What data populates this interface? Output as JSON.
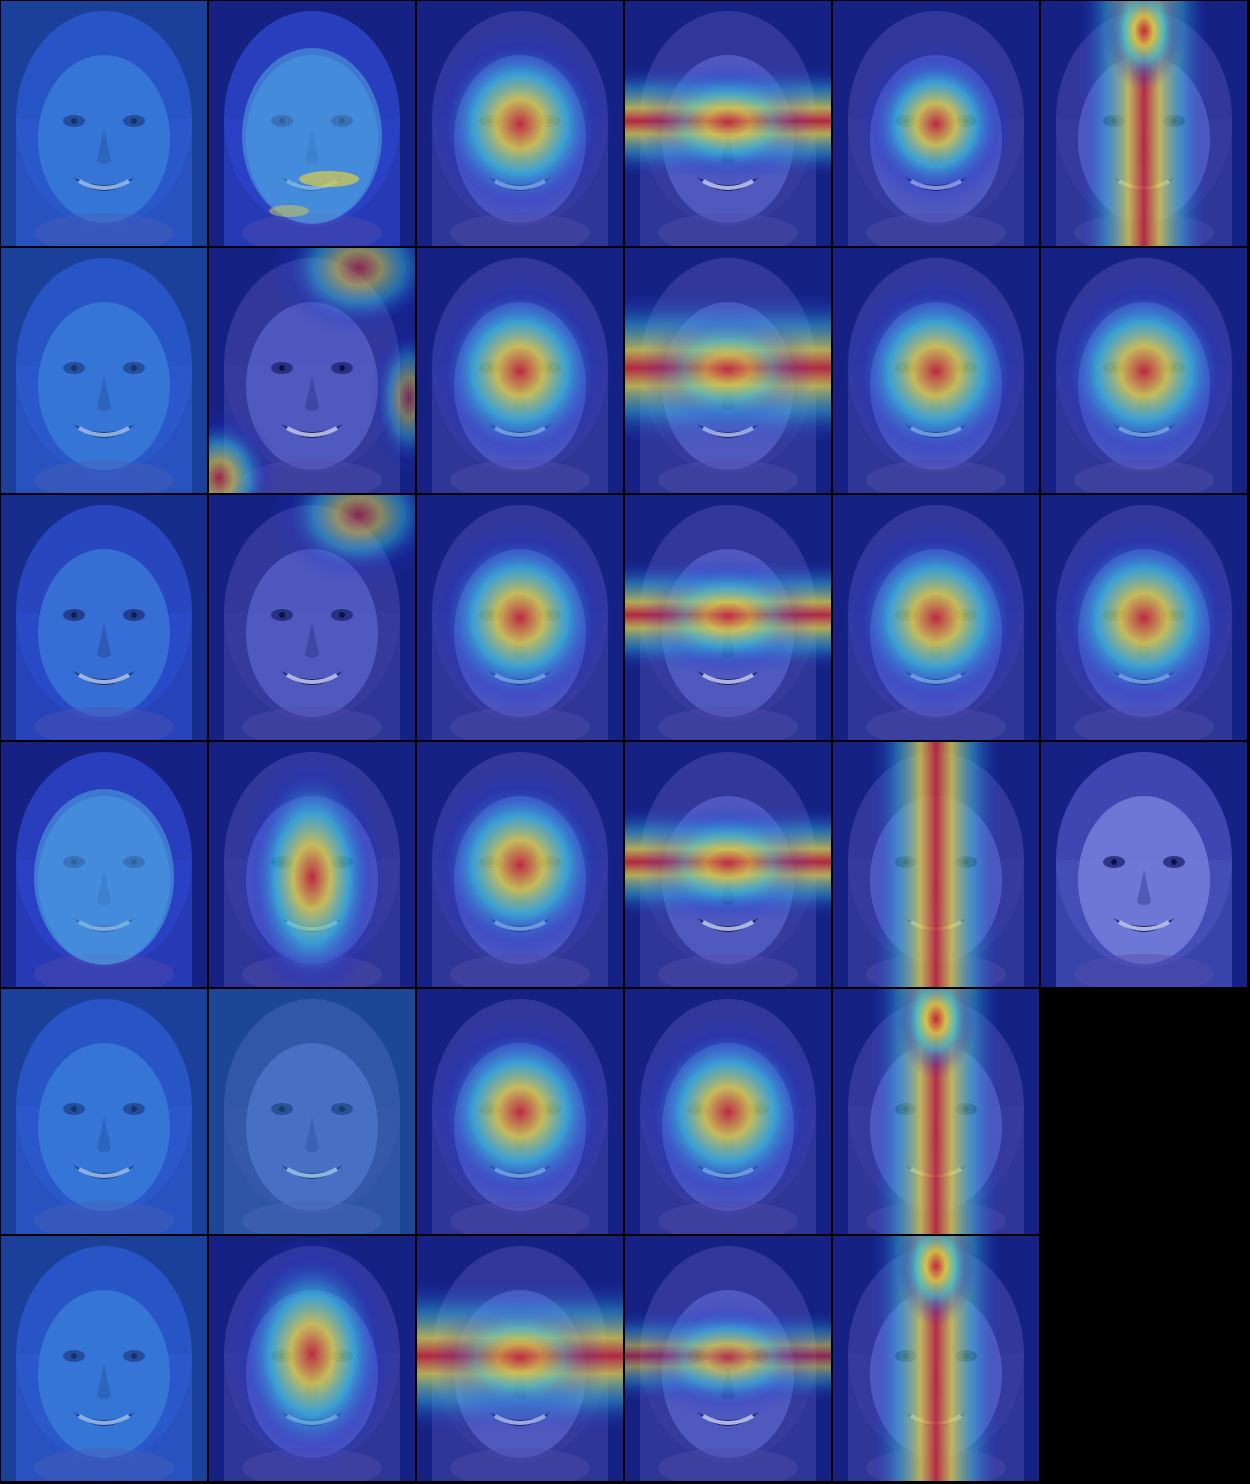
{
  "grid": {
    "rows": 6,
    "cols": 6
  },
  "colors": {
    "background": "#000000",
    "tint": "#2233c8",
    "heat_low": "#1a2fd6",
    "heat_mid": "#35d0e0",
    "heat_warm": "#f3e23a",
    "heat_hot": "#d8262a"
  },
  "tiles": [
    {
      "row": 0,
      "col": 0,
      "style": "gradient-noise"
    },
    {
      "row": 0,
      "col": 1,
      "style": "blotchy-face"
    },
    {
      "row": 0,
      "col": 2,
      "style": "blob-center"
    },
    {
      "row": 0,
      "col": 3,
      "style": "horizontal-band"
    },
    {
      "row": 0,
      "col": 4,
      "style": "blob-center-small"
    },
    {
      "row": 0,
      "col": 5,
      "style": "vertical-band-top"
    },
    {
      "row": 1,
      "col": 0,
      "style": "gradient-soft"
    },
    {
      "row": 1,
      "col": 1,
      "style": "hair-corners"
    },
    {
      "row": 1,
      "col": 2,
      "style": "blob-center"
    },
    {
      "row": 1,
      "col": 3,
      "style": "horizontal-band-wide"
    },
    {
      "row": 1,
      "col": 4,
      "style": "blob-center"
    },
    {
      "row": 1,
      "col": 5,
      "style": "blob-center"
    },
    {
      "row": 2,
      "col": 0,
      "style": "edge-faint"
    },
    {
      "row": 2,
      "col": 1,
      "style": "hair-top"
    },
    {
      "row": 2,
      "col": 2,
      "style": "blob-center"
    },
    {
      "row": 2,
      "col": 3,
      "style": "horizontal-band"
    },
    {
      "row": 2,
      "col": 4,
      "style": "blob-center"
    },
    {
      "row": 2,
      "col": 5,
      "style": "blob-center"
    },
    {
      "row": 3,
      "col": 0,
      "style": "blotchy-light"
    },
    {
      "row": 3,
      "col": 1,
      "style": "vertical-blob"
    },
    {
      "row": 3,
      "col": 2,
      "style": "blob-center"
    },
    {
      "row": 3,
      "col": 3,
      "style": "horizontal-band"
    },
    {
      "row": 3,
      "col": 4,
      "style": "vertical-band"
    },
    {
      "row": 3,
      "col": 5,
      "style": "plain-tint"
    },
    {
      "row": 4,
      "col": 0,
      "style": "edge-hair"
    },
    {
      "row": 4,
      "col": 1,
      "style": "soft-cyan"
    },
    {
      "row": 4,
      "col": 2,
      "style": "blob-center"
    },
    {
      "row": 4,
      "col": 3,
      "style": "blob-center"
    },
    {
      "row": 4,
      "col": 4,
      "style": "vertical-band-top"
    },
    {
      "row": 4,
      "col": 5,
      "style": "empty"
    },
    {
      "row": 5,
      "col": 0,
      "style": "edge-hair"
    },
    {
      "row": 5,
      "col": 1,
      "style": "blob-center-tall"
    },
    {
      "row": 5,
      "col": 2,
      "style": "horizontal-band-wide"
    },
    {
      "row": 5,
      "col": 3,
      "style": "horizontal-band-soft"
    },
    {
      "row": 5,
      "col": 4,
      "style": "vertical-band-top"
    },
    {
      "row": 5,
      "col": 5,
      "style": "empty"
    }
  ]
}
